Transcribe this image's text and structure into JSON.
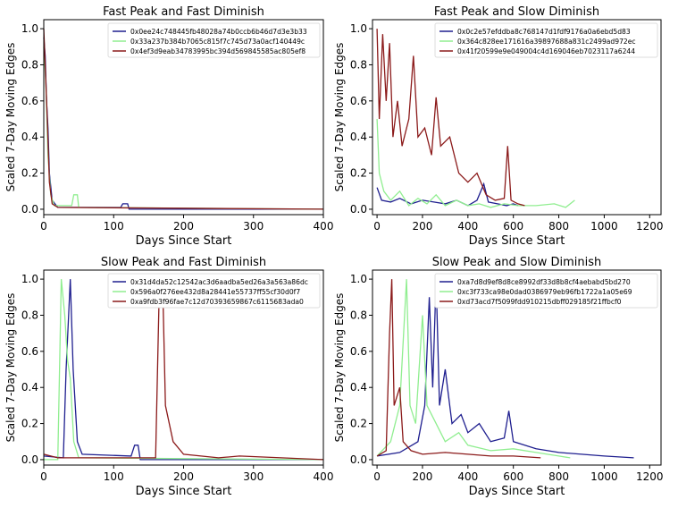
{
  "colors": {
    "blue": "#1f1f8f",
    "green": "#90ee90",
    "red": "#8b1a1a"
  },
  "chart_data": [
    {
      "type": "line",
      "title": "Fast Peak and Fast Diminish",
      "xlabel": "Days Since Start",
      "ylabel": "Scaled 7-Day Moving Edges",
      "xlim": [
        0,
        400
      ],
      "ylim": [
        -0.03,
        1.05
      ],
      "xticks": [
        0,
        100,
        200,
        300,
        400
      ],
      "yticks": [
        0.0,
        0.2,
        0.4,
        0.6,
        0.8,
        1.0
      ],
      "legend": "top-right",
      "series": [
        {
          "name": "0x0ee24c748445fb48028a74b0ccb6b46d7d3e3b33",
          "color": "blue",
          "points": [
            [
              0,
              0.95
            ],
            [
              2,
              0.85
            ],
            [
              4,
              0.6
            ],
            [
              6,
              0.45
            ],
            [
              8,
              0.2
            ],
            [
              12,
              0.05
            ],
            [
              20,
              0.01
            ],
            [
              110,
              0.01
            ],
            [
              113,
              0.03
            ],
            [
              120,
              0.03
            ],
            [
              122,
              0.0
            ],
            [
              400,
              0.0
            ]
          ]
        },
        {
          "name": "0x33a237b384b7065c815f7c745d73a0acf140449c",
          "color": "green",
          "points": [
            [
              0,
              0.9
            ],
            [
              3,
              0.7
            ],
            [
              6,
              0.3
            ],
            [
              10,
              0.08
            ],
            [
              15,
              0.02
            ],
            [
              40,
              0.02
            ],
            [
              43,
              0.08
            ],
            [
              48,
              0.08
            ],
            [
              50,
              0.01
            ],
            [
              400,
              0.0
            ]
          ]
        },
        {
          "name": "0x4ef3d9eab34783995bc394d569845585ac805ef8",
          "color": "red",
          "points": [
            [
              0,
              1.0
            ],
            [
              2,
              0.8
            ],
            [
              5,
              0.5
            ],
            [
              8,
              0.15
            ],
            [
              12,
              0.03
            ],
            [
              20,
              0.01
            ],
            [
              400,
              0.0
            ]
          ]
        }
      ]
    },
    {
      "type": "line",
      "title": "Fast Peak and Slow Diminish",
      "xlabel": "Days Since Start",
      "ylabel": "Scaled 7-Day Moving Edges",
      "xlim": [
        -20,
        1250
      ],
      "ylim": [
        -0.03,
        1.05
      ],
      "xticks": [
        0,
        200,
        400,
        600,
        800,
        1000,
        1200
      ],
      "yticks": [
        0.0,
        0.2,
        0.4,
        0.6,
        0.8,
        1.0
      ],
      "legend": "top-right",
      "series": [
        {
          "name": "0x0c2e57efddba8c768147d1fdf9176a0a6ebd5d83",
          "color": "blue",
          "points": [
            [
              0,
              0.12
            ],
            [
              20,
              0.05
            ],
            [
              60,
              0.04
            ],
            [
              100,
              0.06
            ],
            [
              150,
              0.03
            ],
            [
              200,
              0.05
            ],
            [
              250,
              0.04
            ],
            [
              300,
              0.03
            ],
            [
              350,
              0.05
            ],
            [
              400,
              0.02
            ],
            [
              440,
              0.05
            ],
            [
              470,
              0.14
            ],
            [
              490,
              0.04
            ],
            [
              530,
              0.03
            ],
            [
              570,
              0.02
            ],
            [
              600,
              0.03
            ],
            [
              620,
              0.02
            ]
          ]
        },
        {
          "name": "0x364c828ee171616a39897688a831c2499ad972ec",
          "color": "green",
          "points": [
            [
              0,
              0.5
            ],
            [
              10,
              0.2
            ],
            [
              30,
              0.1
            ],
            [
              60,
              0.05
            ],
            [
              100,
              0.1
            ],
            [
              140,
              0.02
            ],
            [
              180,
              0.06
            ],
            [
              220,
              0.03
            ],
            [
              260,
              0.08
            ],
            [
              300,
              0.02
            ],
            [
              350,
              0.05
            ],
            [
              400,
              0.02
            ],
            [
              450,
              0.03
            ],
            [
              500,
              0.01
            ],
            [
              560,
              0.03
            ],
            [
              620,
              0.02
            ],
            [
              700,
              0.02
            ],
            [
              780,
              0.03
            ],
            [
              830,
              0.01
            ],
            [
              870,
              0.05
            ]
          ]
        },
        {
          "name": "0x41f20599e9e049004c4d169046eb7023117a6244",
          "color": "red",
          "points": [
            [
              0,
              1.0
            ],
            [
              10,
              0.5
            ],
            [
              25,
              0.97
            ],
            [
              40,
              0.6
            ],
            [
              55,
              0.92
            ],
            [
              70,
              0.4
            ],
            [
              90,
              0.6
            ],
            [
              110,
              0.35
            ],
            [
              140,
              0.5
            ],
            [
              160,
              0.85
            ],
            [
              180,
              0.4
            ],
            [
              210,
              0.45
            ],
            [
              240,
              0.3
            ],
            [
              260,
              0.62
            ],
            [
              280,
              0.35
            ],
            [
              320,
              0.4
            ],
            [
              360,
              0.2
            ],
            [
              400,
              0.15
            ],
            [
              440,
              0.2
            ],
            [
              480,
              0.08
            ],
            [
              520,
              0.05
            ],
            [
              560,
              0.06
            ],
            [
              575,
              0.35
            ],
            [
              590,
              0.05
            ],
            [
              620,
              0.03
            ],
            [
              650,
              0.02
            ]
          ]
        }
      ]
    },
    {
      "type": "line",
      "title": "Slow Peak and Fast Diminish",
      "xlabel": "Days Since Start",
      "ylabel": "Scaled 7-Day Moving Edges",
      "xlim": [
        0,
        400
      ],
      "ylim": [
        -0.03,
        1.05
      ],
      "xticks": [
        0,
        100,
        200,
        300,
        400
      ],
      "yticks": [
        0.0,
        0.2,
        0.4,
        0.6,
        0.8,
        1.0
      ],
      "legend": "top-right",
      "series": [
        {
          "name": "0x31d4da52c12542ac3d6aadba5ed26a3a563a86dc",
          "color": "blue",
          "points": [
            [
              0,
              0.02
            ],
            [
              28,
              0.01
            ],
            [
              32,
              0.5
            ],
            [
              38,
              1.0
            ],
            [
              42,
              0.5
            ],
            [
              48,
              0.1
            ],
            [
              55,
              0.03
            ],
            [
              125,
              0.02
            ],
            [
              130,
              0.08
            ],
            [
              135,
              0.08
            ],
            [
              138,
              0.0
            ],
            [
              400,
              0.0
            ]
          ]
        },
        {
          "name": "0x596a0f276ee432d8a28441e55737ff55cf30d0f7",
          "color": "green",
          "points": [
            [
              0,
              0.0
            ],
            [
              20,
              0.0
            ],
            [
              25,
              1.0
            ],
            [
              30,
              0.8
            ],
            [
              34,
              0.55
            ],
            [
              38,
              0.45
            ],
            [
              43,
              0.1
            ],
            [
              50,
              0.01
            ],
            [
              400,
              0.0
            ]
          ]
        },
        {
          "name": "0xa9fdb3f96fae7c12d70393659867c6115683ada0",
          "color": "red",
          "points": [
            [
              0,
              0.03
            ],
            [
              20,
              0.01
            ],
            [
              160,
              0.01
            ],
            [
              165,
              0.9
            ],
            [
              170,
              1.0
            ],
            [
              174,
              0.3
            ],
            [
              185,
              0.1
            ],
            [
              200,
              0.03
            ],
            [
              250,
              0.01
            ],
            [
              280,
              0.02
            ],
            [
              400,
              0.0
            ]
          ]
        }
      ]
    },
    {
      "type": "line",
      "title": "Slow Peak and Slow Diminish",
      "xlabel": "Days Since Start",
      "ylabel": "Scaled 7-Day Moving Edges",
      "xlim": [
        -20,
        1250
      ],
      "ylim": [
        -0.03,
        1.05
      ],
      "xticks": [
        0,
        200,
        400,
        600,
        800,
        1000,
        1200
      ],
      "yticks": [
        0.0,
        0.2,
        0.4,
        0.6,
        0.8,
        1.0
      ],
      "legend": "top-right",
      "series": [
        {
          "name": "0xa7d8d9ef8d8ce8992df33d8b8cf4aebabd5bd270",
          "color": "blue",
          "points": [
            [
              0,
              0.02
            ],
            [
              100,
              0.04
            ],
            [
              180,
              0.1
            ],
            [
              210,
              0.3
            ],
            [
              230,
              0.9
            ],
            [
              245,
              0.4
            ],
            [
              260,
              1.0
            ],
            [
              275,
              0.3
            ],
            [
              300,
              0.5
            ],
            [
              330,
              0.2
            ],
            [
              370,
              0.25
            ],
            [
              400,
              0.15
            ],
            [
              450,
              0.2
            ],
            [
              500,
              0.1
            ],
            [
              560,
              0.12
            ],
            [
              580,
              0.27
            ],
            [
              600,
              0.1
            ],
            [
              700,
              0.06
            ],
            [
              800,
              0.04
            ],
            [
              900,
              0.03
            ],
            [
              1000,
              0.02
            ],
            [
              1130,
              0.01
            ]
          ]
        },
        {
          "name": "0xc3f733ca98e0dad0386979eb96fb1722a1a05e69",
          "color": "green",
          "points": [
            [
              0,
              0.02
            ],
            [
              60,
              0.1
            ],
            [
              100,
              0.3
            ],
            [
              130,
              1.0
            ],
            [
              145,
              0.3
            ],
            [
              170,
              0.2
            ],
            [
              200,
              0.8
            ],
            [
              220,
              0.3
            ],
            [
              260,
              0.2
            ],
            [
              300,
              0.1
            ],
            [
              360,
              0.15
            ],
            [
              400,
              0.08
            ],
            [
              500,
              0.05
            ],
            [
              600,
              0.06
            ],
            [
              700,
              0.04
            ],
            [
              800,
              0.02
            ],
            [
              850,
              0.01
            ]
          ]
        },
        {
          "name": "0xd73acd7f5099fdd910215dbff029185f21ffbcf0",
          "color": "red",
          "points": [
            [
              0,
              0.02
            ],
            [
              40,
              0.05
            ],
            [
              55,
              0.7
            ],
            [
              65,
              1.0
            ],
            [
              75,
              0.3
            ],
            [
              100,
              0.4
            ],
            [
              115,
              0.1
            ],
            [
              150,
              0.05
            ],
            [
              200,
              0.03
            ],
            [
              300,
              0.04
            ],
            [
              400,
              0.03
            ],
            [
              500,
              0.02
            ],
            [
              600,
              0.02
            ],
            [
              720,
              0.01
            ]
          ]
        }
      ]
    }
  ]
}
